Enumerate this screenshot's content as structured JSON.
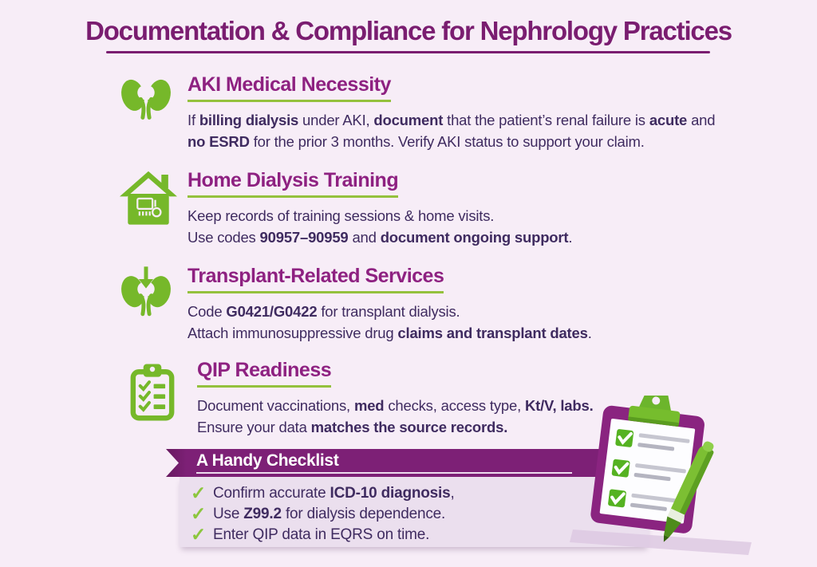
{
  "page": {
    "title": "Documentation & Compliance for Nephrology Practices"
  },
  "colors": {
    "background": "#f7edf7",
    "title_purple": "#7a1d70",
    "heading_purple": "#8e2181",
    "body_text": "#3f2b60",
    "icon_green": "#76b82a",
    "underline_green": "#94c13d",
    "ribbon_purple": "#7d2076",
    "panel_lavender": "#ebdfee",
    "check_green": "#8cc63e"
  },
  "sections": [
    {
      "icon": "kidneys-icon",
      "heading": "AKI Medical Necessity",
      "lines": [
        [
          {
            "t": "If "
          },
          {
            "t": "billing dialysis",
            "b": true
          },
          {
            "t": " under AKI, "
          },
          {
            "t": "document",
            "b": true
          },
          {
            "t": " that the patient’s renal failure is "
          },
          {
            "t": "acute",
            "b": true
          },
          {
            "t": " and"
          }
        ],
        [
          {
            "t": "no ESRD",
            "b": true
          },
          {
            "t": " for the prior 3 months. Verify AKI status to support your claim."
          }
        ]
      ]
    },
    {
      "icon": "home-dialysis-icon",
      "heading": "Home Dialysis Training",
      "lines": [
        [
          {
            "t": "Keep records of training sessions & home visits."
          }
        ],
        [
          {
            "t": "Use codes "
          },
          {
            "t": "90957–90959",
            "b": true
          },
          {
            "t": " and "
          },
          {
            "t": "document ongoing support",
            "b": true
          },
          {
            "t": "."
          }
        ]
      ]
    },
    {
      "icon": "transplant-kidneys-icon",
      "heading": "Transplant-Related Services",
      "lines": [
        [
          {
            "t": "Code "
          },
          {
            "t": "G0421/G0422",
            "b": true
          },
          {
            "t": " for transplant dialysis."
          }
        ],
        [
          {
            "t": "Attach immunosuppressive drug "
          },
          {
            "t": "claims and transplant dates",
            "b": true
          },
          {
            "t": "."
          }
        ]
      ]
    },
    {
      "icon": "checklist-clipboard-icon",
      "heading": "QIP Readiness",
      "lines": [
        [
          {
            "t": "Document vaccinations, "
          },
          {
            "t": "med",
            "b": true
          },
          {
            "t": " checks, access type, "
          },
          {
            "t": "Kt/V, labs.",
            "b": true
          }
        ],
        [
          {
            "t": "Ensure your data "
          },
          {
            "t": "matches the source records.",
            "b": true
          }
        ]
      ]
    }
  ],
  "checklist": {
    "title": "A Handy Checklist",
    "check_icon": "checkmark-icon",
    "items": [
      [
        {
          "t": "Confirm accurate "
        },
        {
          "t": "ICD-10 diagnosis",
          "b": true
        },
        {
          "t": ","
        }
      ],
      [
        {
          "t": "Use "
        },
        {
          "t": "Z99.2",
          "b": true
        },
        {
          "t": " for dialysis dependence."
        }
      ],
      [
        {
          "t": "Enter QIP data in EQRS on time."
        }
      ]
    ]
  },
  "illustration": {
    "name": "clipboard-pen-illustration",
    "description": "purple clipboard with green clip, checked list paper and green pen"
  }
}
